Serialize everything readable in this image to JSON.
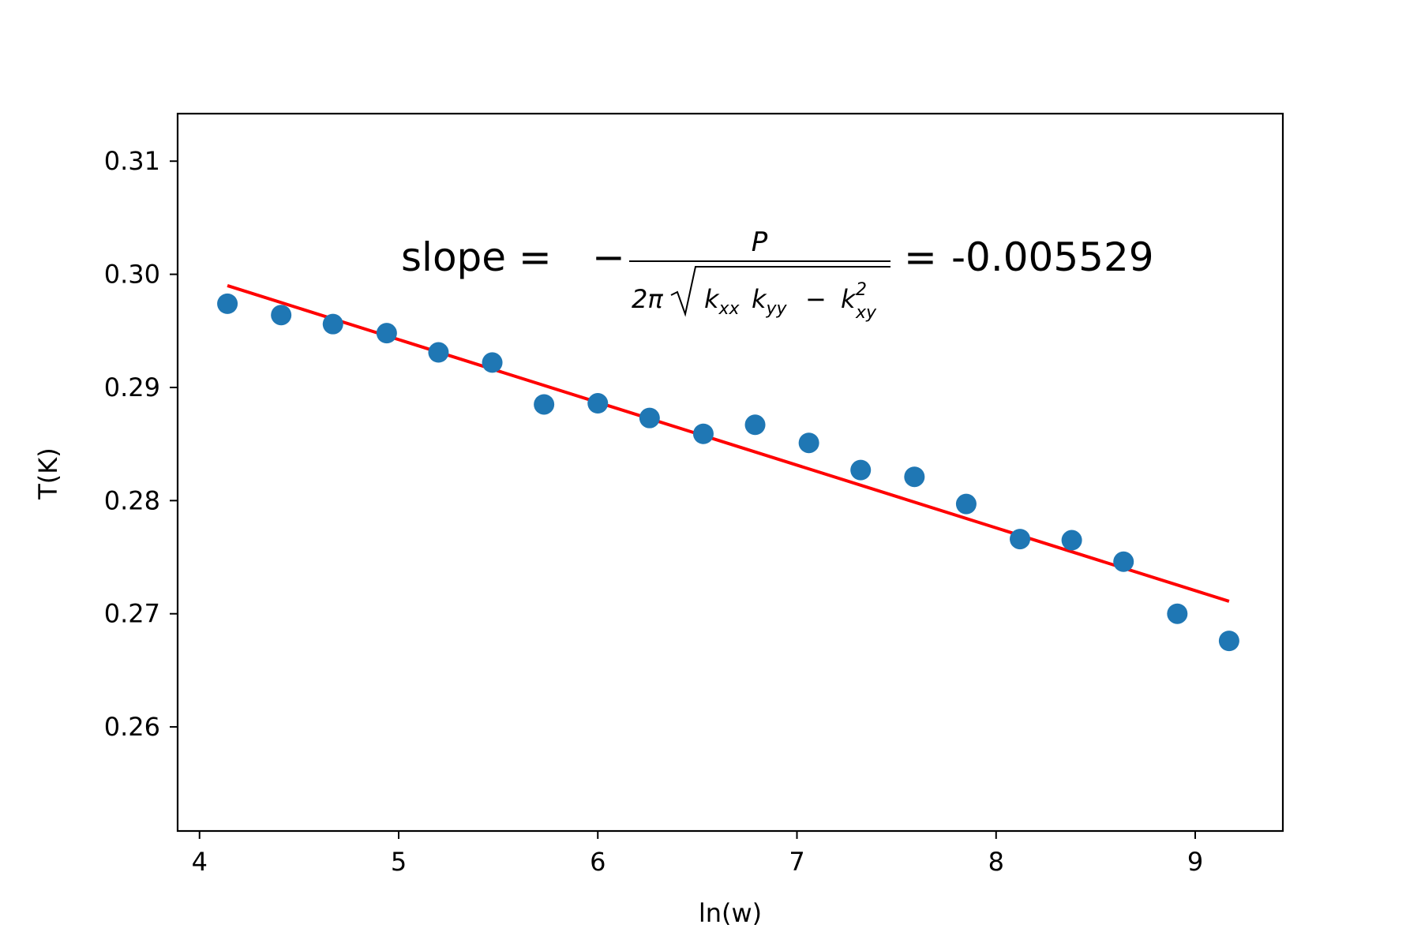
{
  "chart_data": {
    "type": "scatter",
    "xlabel": "ln(w)",
    "ylabel": "T(K)",
    "xlim": [
      3.89,
      9.44
    ],
    "ylim": [
      0.2508,
      0.3142
    ],
    "x_ticks": [
      4,
      5,
      6,
      7,
      8,
      9
    ],
    "x_tick_labels": [
      "4",
      "5",
      "6",
      "7",
      "8",
      "9"
    ],
    "y_ticks": [
      0.26,
      0.27,
      0.28,
      0.29,
      0.3,
      0.31
    ],
    "y_tick_labels": [
      "0.26",
      "0.27",
      "0.28",
      "0.29",
      "0.30",
      "0.31"
    ],
    "grid": false,
    "colors": {
      "points": "#1f77b4",
      "fit": "#ff0000",
      "axes": "#000000"
    },
    "points": {
      "x": [
        4.14,
        4.41,
        4.67,
        4.94,
        5.2,
        5.47,
        5.73,
        6.0,
        6.26,
        6.53,
        6.79,
        7.06,
        7.32,
        7.59,
        7.85,
        8.12,
        8.38,
        8.64,
        8.91,
        9.17
      ],
      "y": [
        0.2974,
        0.2964,
        0.2956,
        0.2948,
        0.2931,
        0.2922,
        0.2885,
        0.2886,
        0.2873,
        0.2859,
        0.2867,
        0.2851,
        0.2827,
        0.2821,
        0.2797,
        0.2766,
        0.2765,
        0.2746,
        0.27,
        0.2676
      ]
    },
    "fit_line": {
      "x": [
        4.14,
        9.17
      ],
      "y": [
        0.299,
        0.2711
      ]
    },
    "annotation": {
      "prefix": "slope = ",
      "minus": "−",
      "numerator": "P",
      "denominator_prefix": "2π",
      "kxx_k": "k",
      "kxx_sub": "xx",
      "kyy_k": "k",
      "kyy_sub": "yy",
      "minus2": "−",
      "kxy_k": "k",
      "kxy_sub": "xy",
      "kxy_sup": "2",
      "equals": "=",
      "value": "-0.005529"
    }
  }
}
